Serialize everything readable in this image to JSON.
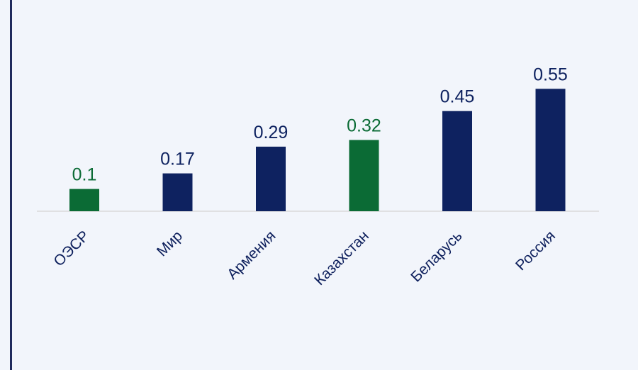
{
  "colors": {
    "navy": "#0e2260",
    "green": "#0b6b35",
    "axis": "#d9d9d9",
    "background": "#f2f5fb",
    "border": "#1f2a5c"
  },
  "chart_data": {
    "type": "bar",
    "categories": [
      "ОЭСР",
      "Мир",
      "Армения",
      "Казахстан",
      "Беларусь",
      "Россия"
    ],
    "values": [
      0.1,
      0.17,
      0.29,
      0.32,
      0.45,
      0.55
    ],
    "value_labels": [
      "0.1",
      "0.17",
      "0.29",
      "0.32",
      "0.45",
      "0.55"
    ],
    "bar_colors": [
      "green",
      "navy",
      "navy",
      "green",
      "navy",
      "navy"
    ],
    "title": "",
    "xlabel": "",
    "ylabel": "",
    "ylim": [
      0,
      0.6
    ],
    "grid": false,
    "legend": "none"
  }
}
